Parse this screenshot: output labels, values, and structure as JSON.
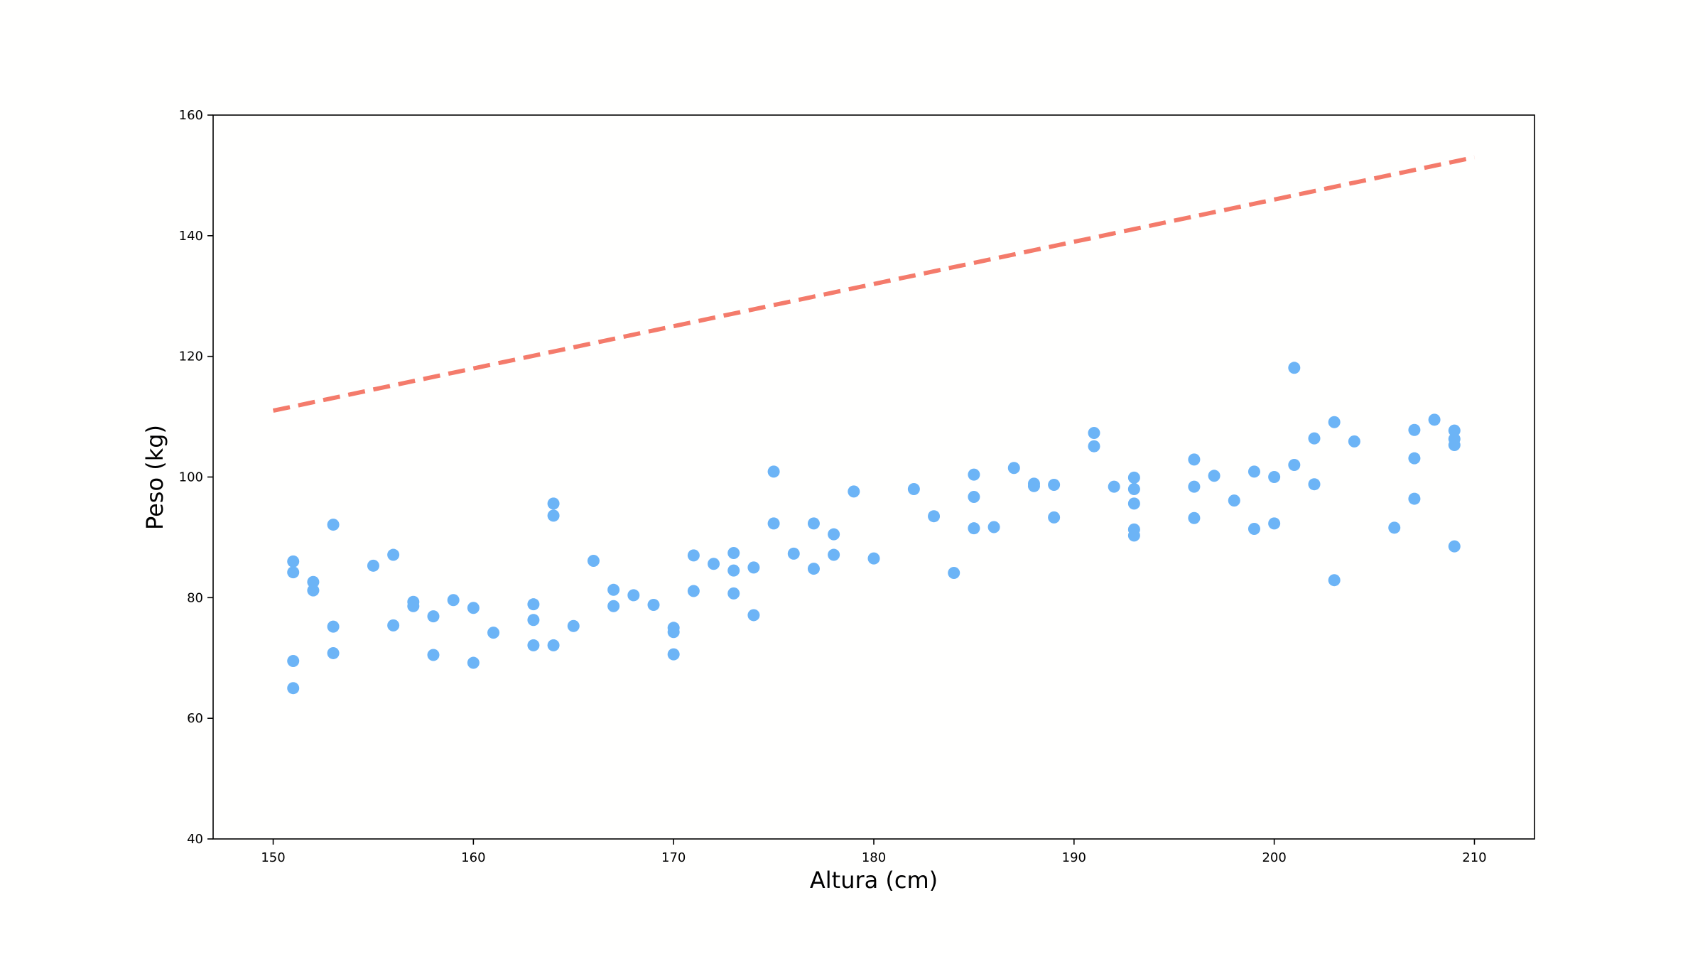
{
  "chart_data": {
    "type": "scatter",
    "title": "",
    "xlabel": "Altura (cm)",
    "ylabel": "Peso (kg)",
    "xlim": [
      147,
      213
    ],
    "ylim": [
      40,
      160
    ],
    "xticks": [
      150,
      160,
      170,
      180,
      190,
      200,
      210
    ],
    "yticks": [
      40,
      60,
      80,
      100,
      120,
      140,
      160
    ],
    "grid": false,
    "point_color": "#6cb4f6",
    "line_color": "#f47b6b",
    "line": {
      "style": "dashed",
      "x": [
        150,
        210
      ],
      "y": [
        111,
        153
      ]
    },
    "points": [
      [
        151,
        86.0
      ],
      [
        151,
        84.2
      ],
      [
        151,
        69.5
      ],
      [
        151,
        65.0
      ],
      [
        152,
        82.6
      ],
      [
        152,
        81.2
      ],
      [
        153,
        92.1
      ],
      [
        153,
        75.2
      ],
      [
        153,
        70.8
      ],
      [
        155,
        85.3
      ],
      [
        156,
        87.1
      ],
      [
        156,
        75.4
      ],
      [
        157,
        79.3
      ],
      [
        157,
        78.6
      ],
      [
        158,
        76.9
      ],
      [
        158,
        70.5
      ],
      [
        159,
        79.6
      ],
      [
        160,
        78.3
      ],
      [
        160,
        69.2
      ],
      [
        161,
        74.2
      ],
      [
        163,
        78.9
      ],
      [
        163,
        76.3
      ],
      [
        163,
        72.1
      ],
      [
        164,
        95.6
      ],
      [
        164,
        93.6
      ],
      [
        164,
        72.1
      ],
      [
        165,
        75.3
      ],
      [
        166,
        86.1
      ],
      [
        167,
        81.3
      ],
      [
        167,
        78.6
      ],
      [
        168,
        80.4
      ],
      [
        169,
        78.8
      ],
      [
        170,
        75.0
      ],
      [
        170,
        74.3
      ],
      [
        170,
        70.6
      ],
      [
        171,
        87.0
      ],
      [
        171,
        81.1
      ],
      [
        172,
        85.6
      ],
      [
        173,
        87.4
      ],
      [
        173,
        84.5
      ],
      [
        173,
        80.7
      ],
      [
        174,
        85.0
      ],
      [
        174,
        77.1
      ],
      [
        175,
        100.9
      ],
      [
        175,
        92.3
      ],
      [
        176,
        87.3
      ],
      [
        177,
        92.3
      ],
      [
        177,
        84.8
      ],
      [
        178,
        90.5
      ],
      [
        178,
        87.1
      ],
      [
        179,
        97.6
      ],
      [
        180,
        86.5
      ],
      [
        182,
        98.0
      ],
      [
        183,
        93.5
      ],
      [
        184,
        84.1
      ],
      [
        185,
        100.4
      ],
      [
        185,
        96.7
      ],
      [
        185,
        91.5
      ],
      [
        186,
        91.7
      ],
      [
        187,
        101.5
      ],
      [
        188,
        98.9
      ],
      [
        188,
        98.5
      ],
      [
        189,
        98.7
      ],
      [
        189,
        93.3
      ],
      [
        191,
        107.3
      ],
      [
        191,
        105.1
      ],
      [
        192,
        98.4
      ],
      [
        193,
        99.9
      ],
      [
        193,
        98.0
      ],
      [
        193,
        95.6
      ],
      [
        193,
        91.3
      ],
      [
        193,
        90.3
      ],
      [
        196,
        102.9
      ],
      [
        196,
        98.4
      ],
      [
        196,
        93.2
      ],
      [
        197,
        100.2
      ],
      [
        198,
        96.1
      ],
      [
        199,
        100.9
      ],
      [
        199,
        91.4
      ],
      [
        200,
        100.0
      ],
      [
        200,
        92.3
      ],
      [
        201,
        118.1
      ],
      [
        201,
        102.0
      ],
      [
        202,
        106.4
      ],
      [
        202,
        98.8
      ],
      [
        203,
        109.1
      ],
      [
        203,
        82.9
      ],
      [
        204,
        105.9
      ],
      [
        206,
        91.6
      ],
      [
        207,
        107.8
      ],
      [
        207,
        103.1
      ],
      [
        207,
        96.4
      ],
      [
        208,
        109.5
      ],
      [
        209,
        107.7
      ],
      [
        209,
        106.3
      ],
      [
        209,
        105.3
      ],
      [
        209,
        88.5
      ]
    ]
  }
}
